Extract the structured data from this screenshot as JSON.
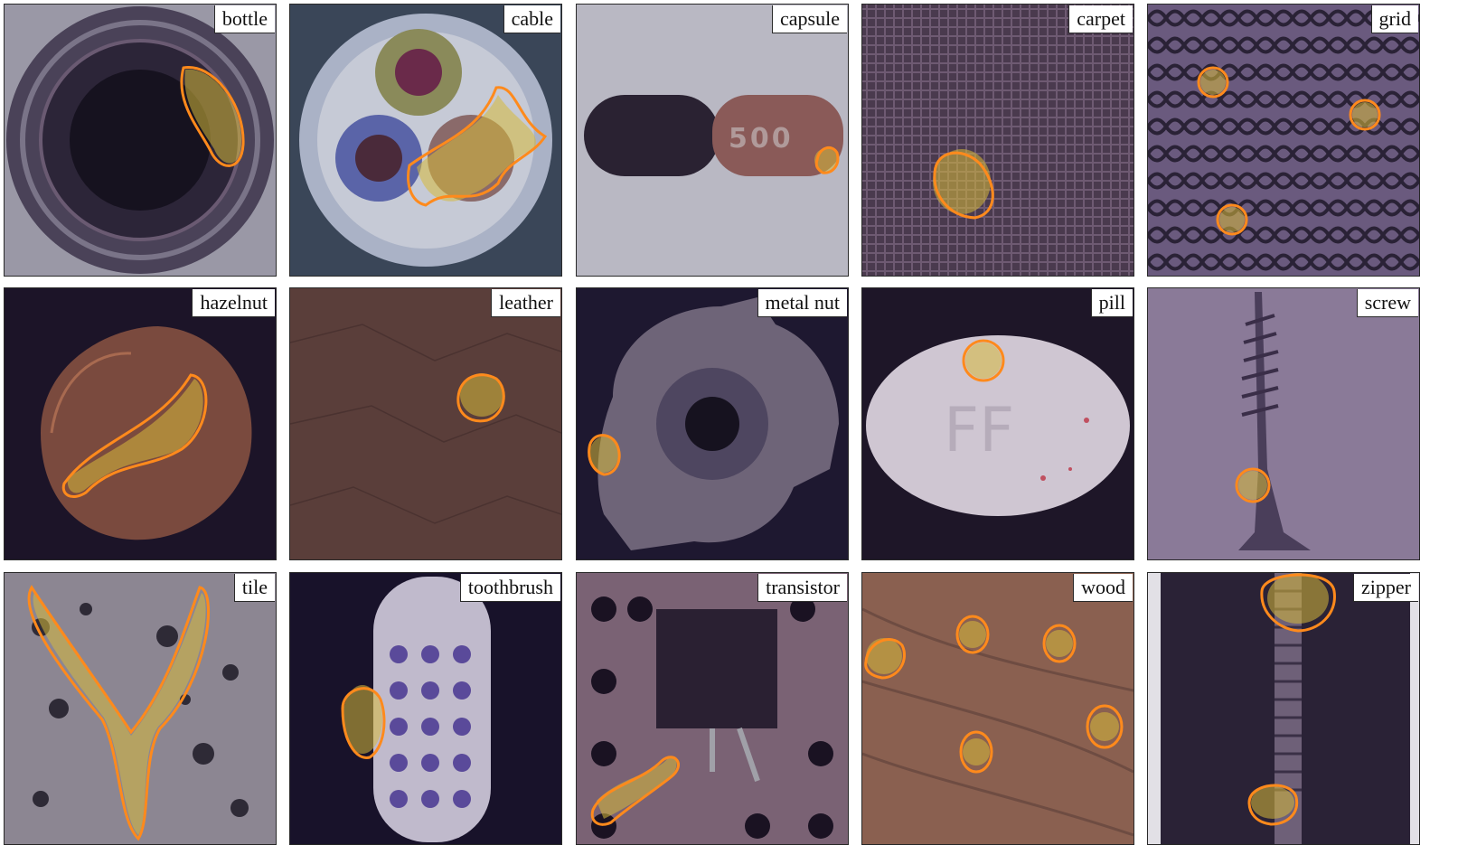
{
  "figure": {
    "panels": [
      {
        "label": "bottle"
      },
      {
        "label": "cable"
      },
      {
        "label": "capsule"
      },
      {
        "label": "carpet"
      },
      {
        "label": "grid"
      },
      {
        "label": "hazelnut"
      },
      {
        "label": "leather"
      },
      {
        "label": "metal nut"
      },
      {
        "label": "pill"
      },
      {
        "label": "screw"
      },
      {
        "label": "tile"
      },
      {
        "label": "toothbrush"
      },
      {
        "label": "transistor"
      },
      {
        "label": "wood"
      },
      {
        "label": "zipper"
      }
    ],
    "colors": {
      "contour": "#ff8a1c",
      "heat": "#d7b93a",
      "border": "#2a2a2a"
    }
  }
}
